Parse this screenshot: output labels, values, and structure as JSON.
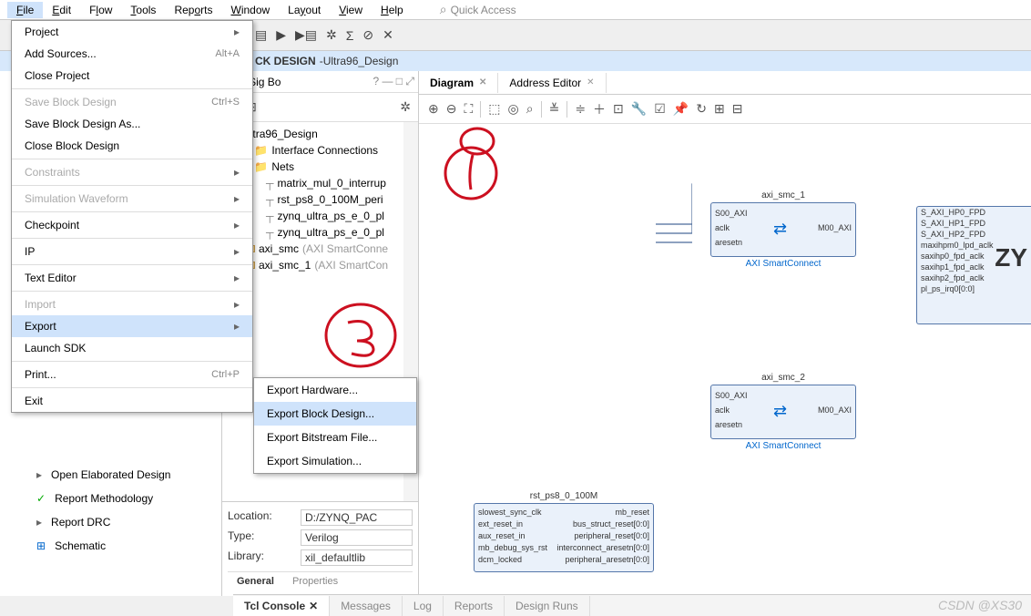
{
  "menubar": {
    "items": [
      "File",
      "Edit",
      "Flow",
      "Tools",
      "Reports",
      "Window",
      "Layout",
      "View",
      "Help"
    ],
    "quick": "Quick Access"
  },
  "blockdesign": {
    "label": "CK DESIGN",
    "name": "Ultra96_Design"
  },
  "filemenu": {
    "items": [
      {
        "label": "Project",
        "arrow": true
      },
      {
        "label": "Add Sources...",
        "shortcut": "Alt+A"
      },
      {
        "label": "Close Project"
      },
      {
        "label": "Save Block Design",
        "shortcut": "Ctrl+S",
        "disabled": true,
        "sep": true
      },
      {
        "label": "Save Block Design As..."
      },
      {
        "label": "Close Block Design"
      },
      {
        "label": "Constraints",
        "arrow": true,
        "disabled": true,
        "sep": true
      },
      {
        "label": "Simulation Waveform",
        "arrow": true,
        "disabled": true,
        "sep": true
      },
      {
        "label": "Checkpoint",
        "arrow": true,
        "sep": true
      },
      {
        "label": "IP",
        "arrow": true,
        "sep": true
      },
      {
        "label": "Text Editor",
        "arrow": true,
        "sep": true
      },
      {
        "label": "Import",
        "arrow": true,
        "disabled": true,
        "sep": true
      },
      {
        "label": "Export",
        "arrow": true,
        "highlight": true
      },
      {
        "label": "Launch SDK"
      },
      {
        "label": "Print...",
        "shortcut": "Ctrl+P",
        "sep": true
      },
      {
        "label": "Exit",
        "sep": true
      }
    ]
  },
  "submenu": {
    "items": [
      {
        "label": "Export Hardware..."
      },
      {
        "label": "Export Block Design...",
        "highlight": true
      },
      {
        "label": "Export Bitstream File..."
      },
      {
        "label": "Export Simulation..."
      }
    ]
  },
  "nav": {
    "items": [
      {
        "label": "Open Elaborated Design",
        "cls": ""
      },
      {
        "label": "Report Methodology",
        "cls": "check"
      },
      {
        "label": "Report DRC",
        "cls": ""
      },
      {
        "label": "Schematic",
        "cls": "sch"
      }
    ]
  },
  "midtabs": {
    "t1": "u",
    "t2": "Sig Bo"
  },
  "tree": {
    "root": "Ultra96_Design",
    "l1a": "Interface Connections",
    "l1b": "Nets",
    "nets": [
      "matrix_mul_0_interrup",
      "rst_ps8_0_100M_peri",
      "zynq_ultra_ps_e_0_pl",
      "zynq_ultra_ps_e_0_pl"
    ],
    "ip1": "axi_smc",
    "ip1g": "(AXI SmartConne",
    "ip2": "axi_smc_1",
    "ip2g": "(AXI SmartCon"
  },
  "props": {
    "location": {
      "lbl": "Location:",
      "val": "D:/ZYNQ_PAC"
    },
    "type": {
      "lbl": "Type:",
      "val": "Verilog"
    },
    "library": {
      "lbl": "Library:",
      "val": "xil_defaultlib"
    },
    "tabs": {
      "general": "General",
      "properties": "Properties"
    }
  },
  "diagram": {
    "tabs": {
      "diagram": "Diagram",
      "addr": "Address Editor"
    }
  },
  "blocks": {
    "smc1": {
      "title": "axi_smc_1",
      "sub": "AXI SmartConnect",
      "p1": "S00_AXI",
      "p2": "aclk",
      "p3": "aresetn",
      "out": "M00_AXI"
    },
    "smc2": {
      "title": "axi_smc_2",
      "sub": "AXI SmartConnect",
      "p1": "S00_AXI",
      "p2": "aclk",
      "p3": "aresetn",
      "out": "M00_AXI"
    },
    "rst": {
      "title": "rst_ps8_0_100M",
      "p1": "slowest_sync_clk",
      "p2": "ext_reset_in",
      "p3": "aux_reset_in",
      "p4": "mb_debug_sys_rst",
      "p5": "dcm_locked",
      "o1": "mb_reset",
      "o2": "bus_struct_reset[0:0]",
      "o3": "peripheral_reset[0:0]",
      "o4": "interconnect_aresetn[0:0]",
      "o5": "peripheral_aresetn[0:0]"
    },
    "zynq": {
      "p1": "S_AXI_HP0_FPD",
      "p2": "S_AXI_HP1_FPD",
      "p3": "S_AXI_HP2_FPD",
      "p4": "maxihpm0_lpd_aclk",
      "p5": "saxihp0_fpd_aclk",
      "p6": "saxihp1_fpd_aclk",
      "p7": "saxihp2_fpd_aclk",
      "p8": "pl_ps_irq0[0:0]",
      "big": "ZY"
    }
  },
  "bottom": {
    "tabs": [
      "Tcl Console",
      "Messages",
      "Log",
      "Reports",
      "Design Runs"
    ]
  },
  "watermark": "CSDN @XS30"
}
